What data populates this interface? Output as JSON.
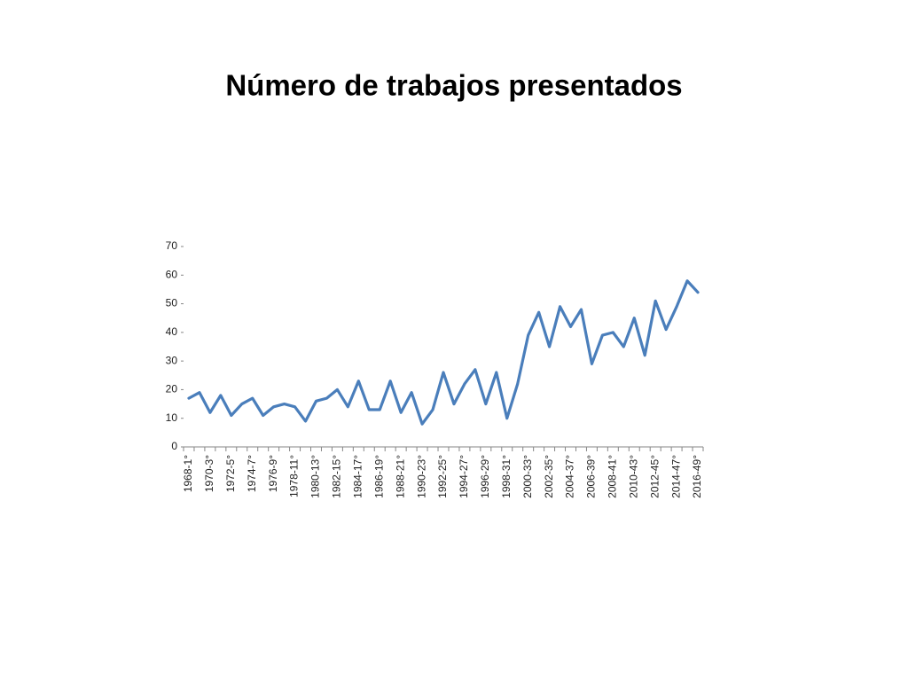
{
  "chart_data": {
    "type": "line",
    "title": "Número de trabajos presentados",
    "categories": [
      "1968-1°",
      null,
      "1970-3°",
      null,
      "1972-5°",
      null,
      "1974-7°",
      null,
      "1976-9°",
      null,
      "1978-11°",
      null,
      "1980-13°",
      null,
      "1982-15°",
      null,
      "1984-17°",
      null,
      "1986-19°",
      null,
      "1988-21°",
      null,
      "1990-23°",
      null,
      "1992-25°",
      null,
      "1994-27°",
      null,
      "1996-29°",
      null,
      "1998-31°",
      null,
      "2000-33°",
      null,
      "2002-35°",
      null,
      "2004-37°",
      null,
      "2006-39°",
      null,
      "2008-41°",
      null,
      "2010-43°",
      null,
      "2012-45°",
      null,
      "2014-47°",
      null,
      "2016-49°"
    ],
    "values": [
      17,
      19,
      12,
      18,
      11,
      15,
      17,
      11,
      14,
      15,
      14,
      9,
      16,
      17,
      20,
      14,
      23,
      13,
      13,
      23,
      12,
      19,
      8,
      13,
      26,
      15,
      22,
      27,
      15,
      26,
      10,
      22,
      39,
      47,
      35,
      49,
      42,
      48,
      29,
      39,
      40,
      35,
      45,
      32,
      51,
      41,
      49,
      58,
      54
    ],
    "color": "#4a7ebb",
    "ylim": [
      0,
      70
    ],
    "yticks": [
      0,
      10,
      20,
      30,
      40,
      50,
      60,
      70
    ],
    "grid": false
  }
}
